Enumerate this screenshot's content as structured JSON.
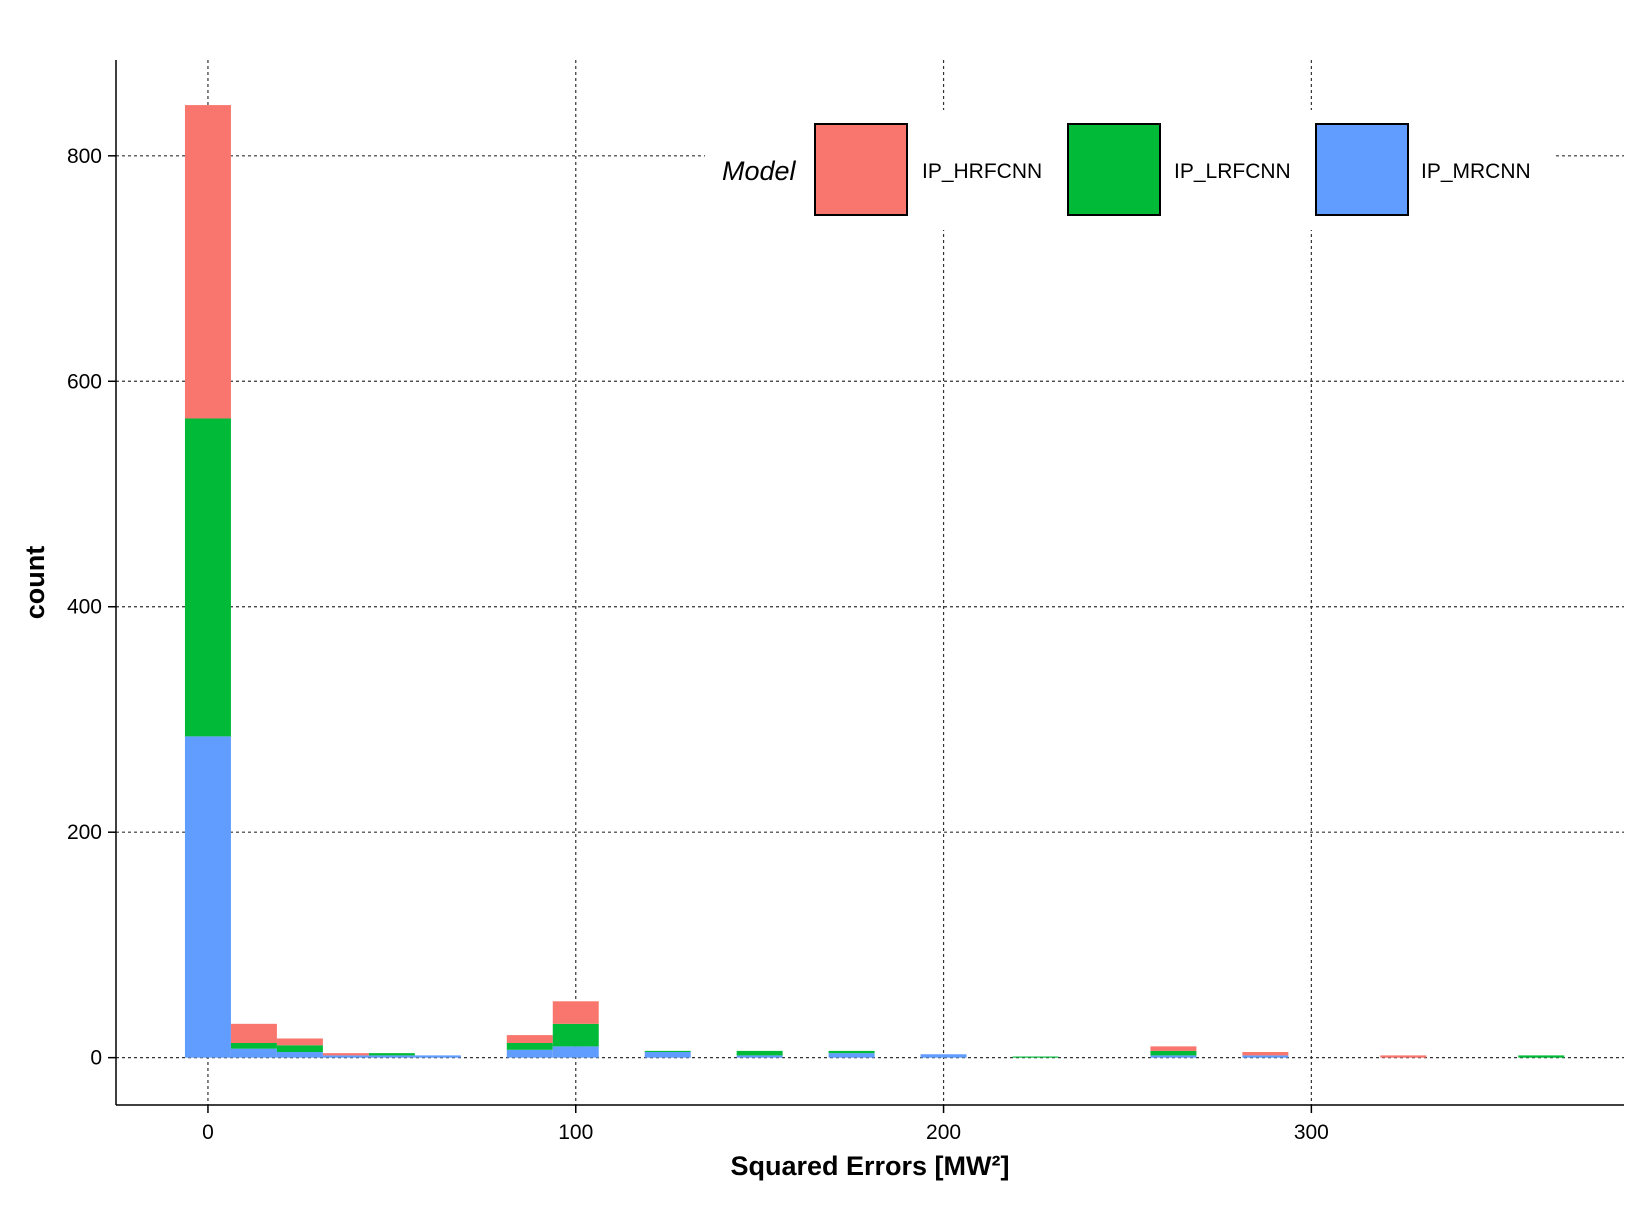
{
  "chart_data": {
    "type": "bar",
    "stacked": true,
    "xlabel": "Squared Errors [MW²]",
    "ylabel": "count",
    "xlim": [
      -25,
      385
    ],
    "ylim": [
      -42,
      885
    ],
    "x_ticks": [
      0,
      100,
      200,
      300
    ],
    "y_ticks": [
      0,
      200,
      400,
      600,
      800
    ],
    "grid": true,
    "bin_width": 12.5,
    "bins": [
      0,
      12.5,
      25,
      37.5,
      50,
      62.5,
      87.5,
      100,
      125,
      150,
      175,
      200,
      225,
      262.5,
      287.5,
      325,
      362.5
    ],
    "legend": {
      "title": "Model",
      "position": "top-right"
    },
    "series": [
      {
        "name": "IP_MRCNN",
        "color": "#619CFF",
        "values": [
          285,
          8,
          5,
          2,
          2,
          2,
          7,
          10,
          5,
          2,
          4,
          3,
          0,
          2,
          2,
          0,
          0
        ]
      },
      {
        "name": "IP_LRFCNN",
        "color": "#00BA38",
        "values": [
          282,
          5,
          6,
          0,
          2,
          0,
          6,
          20,
          1,
          4,
          2,
          0,
          1,
          4,
          0,
          0,
          2
        ]
      },
      {
        "name": "IP_HRFCNN",
        "color": "#F8766D",
        "values": [
          278,
          17,
          6,
          2,
          0,
          0,
          7,
          20,
          0,
          0,
          0,
          0,
          0,
          4,
          3,
          2,
          0
        ]
      }
    ],
    "legend_order": [
      "IP_HRFCNN",
      "IP_LRFCNN",
      "IP_MRCNN"
    ]
  }
}
